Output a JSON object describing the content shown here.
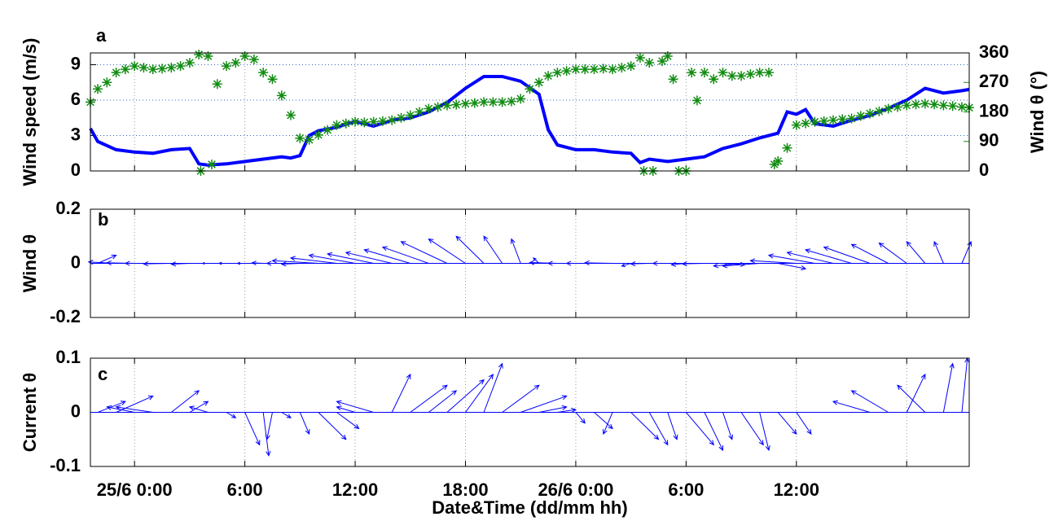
{
  "chart_data": [
    {
      "type": "line",
      "title": "a",
      "ylabel": "Wind speed (m/s)",
      "y2label": "Wind θ (°)",
      "xlim": [
        -2.4,
        45.4
      ],
      "ylim": [
        0,
        10
      ],
      "yticks": [
        0,
        3,
        6,
        9
      ],
      "y2lim": [
        0,
        360
      ],
      "y2ticks": [
        0,
        90,
        180,
        270,
        360
      ],
      "grid": true,
      "series": [
        {
          "style": "line",
          "color": "#0000ff",
          "axis": "y",
          "x": [
            -2.4,
            -2,
            -1,
            0,
            1,
            2,
            3,
            3.5,
            4,
            5,
            6,
            7,
            8,
            8.5,
            9,
            9.5,
            10,
            11,
            12,
            13,
            14,
            15,
            16,
            17,
            18,
            19,
            20,
            21,
            22,
            22.5,
            23,
            24,
            25,
            26,
            27,
            27.5,
            28,
            29,
            30,
            31,
            32,
            33,
            34,
            35,
            35.5,
            36,
            36.5,
            37,
            38,
            39,
            40,
            41,
            42,
            43,
            44,
            45,
            45.4
          ],
          "values": [
            3.6,
            2.5,
            1.8,
            1.6,
            1.5,
            1.8,
            1.9,
            0.6,
            0.5,
            0.6,
            0.8,
            1.0,
            1.2,
            1.1,
            1.3,
            3.0,
            3.4,
            3.7,
            4.2,
            3.8,
            4.3,
            4.5,
            5.0,
            5.8,
            7.0,
            8.0,
            8.0,
            7.6,
            6.5,
            3.5,
            2.2,
            1.8,
            1.8,
            1.6,
            1.5,
            0.7,
            1.0,
            0.8,
            1.0,
            1.2,
            1.9,
            2.3,
            2.8,
            3.2,
            5.0,
            4.8,
            5.2,
            4.0,
            3.8,
            4.3,
            4.7,
            5.3,
            6.0,
            7.0,
            6.6,
            6.8,
            6.9
          ]
        },
        {
          "style": "asterisk",
          "color": "#128c12",
          "axis": "y2",
          "x": [
            -2.4,
            -2,
            -1.5,
            -1,
            -0.5,
            0,
            0.5,
            1,
            1.5,
            2,
            2.5,
            3,
            3.5,
            3.6,
            4,
            4.2,
            4.5,
            5,
            5.5,
            6,
            6.5,
            7,
            7.5,
            8,
            8.5,
            9,
            9.5,
            10,
            10.5,
            11,
            11.5,
            12,
            12.5,
            13,
            13.5,
            14,
            14.5,
            15,
            15.5,
            16,
            16.5,
            17,
            17.5,
            18,
            18.5,
            19,
            19.5,
            20,
            20.5,
            21,
            21.5,
            22,
            22.5,
            23,
            23.5,
            24,
            24.5,
            25,
            25.5,
            26,
            26.5,
            27,
            27.5,
            27.7,
            28,
            28.2,
            28.7,
            29,
            29.3,
            29.6,
            30,
            30.3,
            30.6,
            31,
            31.5,
            32,
            32.5,
            33,
            33.5,
            34,
            34.5,
            34.8,
            35,
            35.5,
            36,
            36.5,
            37,
            37.5,
            38,
            38.5,
            39,
            39.5,
            40,
            40.5,
            41,
            41.5,
            42,
            42.5,
            43,
            43.5,
            44,
            44.5,
            45,
            45.4
          ],
          "values": [
            210,
            250,
            270,
            300,
            310,
            320,
            315,
            310,
            312,
            315,
            320,
            330,
            355,
            0,
            350,
            20,
            265,
            320,
            330,
            350,
            340,
            300,
            280,
            230,
            170,
            100,
            95,
            110,
            125,
            140,
            145,
            150,
            148,
            150,
            152,
            155,
            162,
            170,
            180,
            190,
            195,
            200,
            202,
            205,
            207,
            210,
            210,
            210,
            212,
            220,
            250,
            270,
            290,
            300,
            305,
            310,
            310,
            310,
            312,
            310,
            315,
            320,
            345,
            0,
            330,
            0,
            335,
            350,
            280,
            0,
            0,
            300,
            215,
            300,
            280,
            300,
            290,
            290,
            295,
            300,
            300,
            20,
            30,
            70,
            140,
            145,
            150,
            152,
            155,
            158,
            160,
            168,
            175,
            182,
            190,
            195,
            200,
            203,
            205,
            203,
            200,
            198,
            195,
            193
          ]
        }
      ]
    },
    {
      "type": "quiver",
      "title": "b",
      "ylabel": "Wind θ",
      "color": "#0000ff",
      "xlim": [
        -2.4,
        45.4
      ],
      "ylim": [
        -0.2,
        0.2
      ],
      "yticks": [
        -0.2,
        0,
        0.2
      ],
      "grid": true,
      "x": [
        -2,
        -1,
        0,
        1,
        2,
        3,
        4,
        5,
        6,
        7,
        8,
        9,
        10,
        11,
        12,
        13,
        14,
        15,
        16,
        17,
        18,
        19,
        20,
        21,
        22,
        23,
        24,
        25,
        26,
        27,
        28,
        29,
        30,
        31,
        32,
        33,
        34,
        35,
        36,
        37,
        38,
        39,
        40,
        41,
        42,
        43,
        44,
        45
      ],
      "u": [
        1.0,
        -1.5,
        -1.5,
        -1.5,
        -1.5,
        -1,
        -0.3,
        -0.4,
        -0.4,
        -0.6,
        -0.8,
        -1.0,
        -2.5,
        -2.5,
        -2.5,
        -2.5,
        -2.5,
        -2.5,
        -2.5,
        -2.5,
        -2.0,
        -1.5,
        -1.0,
        -0.5,
        -0.3,
        -1.5,
        -1.5,
        -1.5,
        -1.5,
        -0.5,
        -1,
        -0.8,
        -0.8,
        -1.2,
        1.2,
        -1.5,
        -2,
        1.5,
        -2.5,
        -2.5,
        -2.5,
        -2.5,
        -2.5,
        -2,
        -1.5,
        -1,
        -0.5,
        0.5
      ],
      "v": [
        0.03,
        0.005,
        0.002,
        0,
        -0.002,
        -0.003,
        0,
        0,
        0,
        0.002,
        0,
        -0.003,
        0.01,
        0.02,
        0.03,
        0.035,
        0.04,
        0.05,
        0.06,
        0.08,
        0.09,
        0.1,
        0.1,
        0.09,
        0.02,
        0.003,
        0,
        0,
        0.002,
        -0.01,
        -0.002,
        0,
        -0.005,
        -0.002,
        -0.005,
        -0.01,
        -0.01,
        -0.02,
        0.01,
        0.03,
        0.04,
        0.05,
        0.06,
        0.07,
        0.075,
        0.08,
        0.08,
        0.08
      ]
    },
    {
      "type": "quiver",
      "title": "c",
      "ylabel": "Current θ",
      "xlabel": "Date&Time (dd/mm hh)",
      "color": "#0000ff",
      "xlim": [
        -2.4,
        45.4
      ],
      "ylim": [
        -0.1,
        0.1
      ],
      "yticks": [
        -0.1,
        0,
        0.1
      ],
      "grid": true,
      "xticks": [
        {
          "value": 0,
          "label": "25/6 0:00"
        },
        {
          "value": 6,
          "label": "6:00"
        },
        {
          "value": 12,
          "label": "12:00"
        },
        {
          "value": 18,
          "label": "18:00"
        },
        {
          "value": 24,
          "label": "26/6 0:00"
        },
        {
          "value": 30,
          "label": "6:00"
        },
        {
          "value": 36,
          "label": "12:00"
        },
        {
          "value": 42,
          "label": ""
        }
      ],
      "x": [
        -2,
        -1,
        0,
        1,
        2,
        3,
        4,
        5,
        6,
        7,
        7.5,
        8,
        9,
        10,
        11,
        12,
        13,
        14,
        15,
        16,
        17,
        18,
        19,
        20,
        21,
        22,
        23,
        24,
        25,
        26,
        27,
        28,
        29,
        30,
        31,
        32,
        33,
        34,
        35,
        36,
        37,
        38,
        39,
        40,
        41,
        42,
        43,
        44,
        45
      ],
      "u": [
        1.5,
        2,
        -1.5,
        -2,
        1.5,
        1,
        -1,
        0.5,
        0.8,
        0.3,
        -0.3,
        0.5,
        0.5,
        1.5,
        1.2,
        -1,
        -2,
        1,
        2,
        1.5,
        2,
        1.5,
        1,
        2,
        2.5,
        1.5,
        1,
        0.5,
        1,
        -0.5,
        1.5,
        1,
        0.5,
        1.5,
        1,
        0.5,
        1.2,
        0.5,
        1,
        0.8,
        0,
        0,
        0,
        -2,
        -2,
        1,
        -1.5,
        0.5,
        0.3
      ],
      "v": [
        0.02,
        0.03,
        0.01,
        0.01,
        0.04,
        0.02,
        0.01,
        -0.01,
        -0.06,
        -0.08,
        -0.05,
        -0.01,
        -0.04,
        -0.05,
        -0.03,
        0.01,
        0.02,
        0.07,
        0.05,
        0.04,
        0.06,
        0.07,
        0.09,
        0.05,
        0.03,
        0.01,
        0.005,
        -0.02,
        -0.03,
        -0.04,
        -0.05,
        -0.06,
        -0.05,
        -0.06,
        -0.07,
        -0.05,
        -0.06,
        -0.07,
        -0.04,
        -0.04,
        0,
        0,
        0,
        0.02,
        0.04,
        0.07,
        0.05,
        0.09,
        0.1
      ]
    }
  ]
}
